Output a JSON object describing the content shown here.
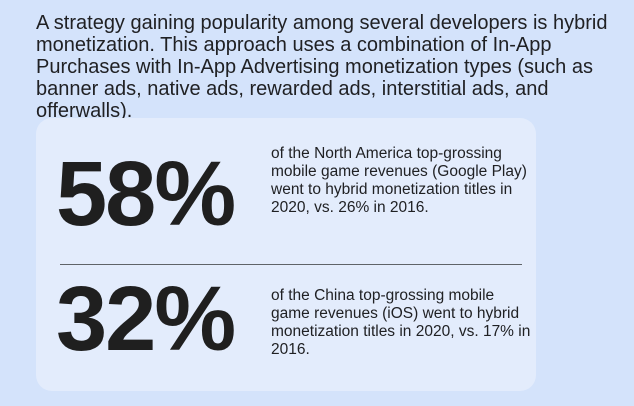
{
  "intro": {
    "text": "A strategy gaining popularity among several developers is hybrid monetization. This approach uses a combination of In-App Purchases with In-App Advertising monetization types (such as banner ads, native ads, rewarded ads, interstitial ads, and offerwalls)."
  },
  "stats": [
    {
      "value": "58%",
      "description": "of the North America top-grossing mobile game revenues (Google Play) went to hybrid monetization titles in 2020, vs. 26% in 2016."
    },
    {
      "value": "32%",
      "description": "of the China top-grossing mobile game revenues (iOS) went to hybrid monetization titles in 2020, vs. 17% in 2016."
    }
  ],
  "colors": {
    "background": "#d4e3fb",
    "card": "#e3ecfc",
    "text": "#202124",
    "divider": "#5f6368"
  }
}
